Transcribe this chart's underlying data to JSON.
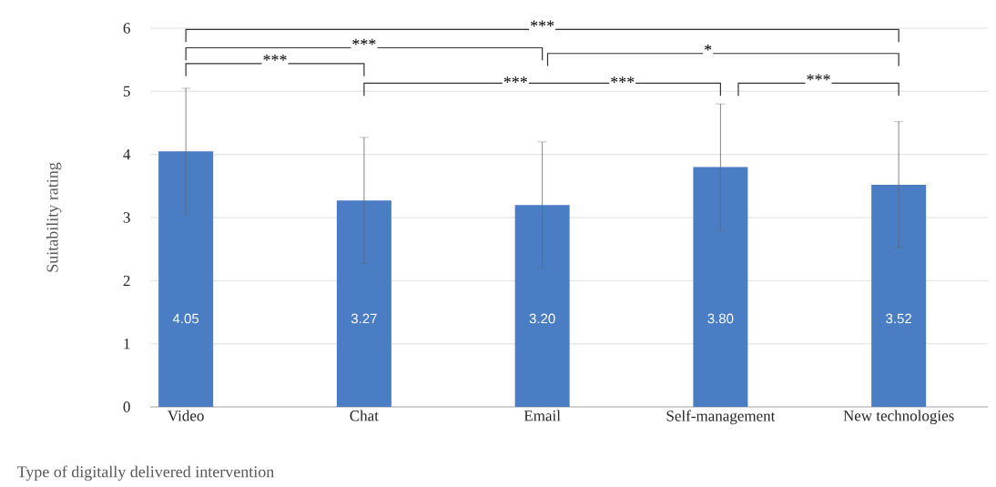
{
  "chart_data": {
    "type": "bar",
    "xlabel": "Type of digitally delivered intervention",
    "ylabel": "Suitability rating",
    "categories": [
      "Video",
      "Chat",
      "Email",
      "Self-management",
      "New technologies"
    ],
    "values": [
      4.05,
      3.27,
      3.2,
      3.8,
      3.52
    ],
    "value_labels": [
      "4.05",
      "3.27",
      "3.20",
      "3.80",
      "3.52"
    ],
    "errors": [
      1.0,
      1.0,
      1.0,
      1.0,
      1.0
    ],
    "color": "#4a7dc4",
    "ylim": [
      0,
      6
    ],
    "yticks": [
      0,
      1,
      2,
      3,
      4,
      5,
      6
    ],
    "grid": "y",
    "annotations": [
      "***",
      "***",
      "***",
      "*",
      "***",
      "***",
      "***"
    ]
  }
}
